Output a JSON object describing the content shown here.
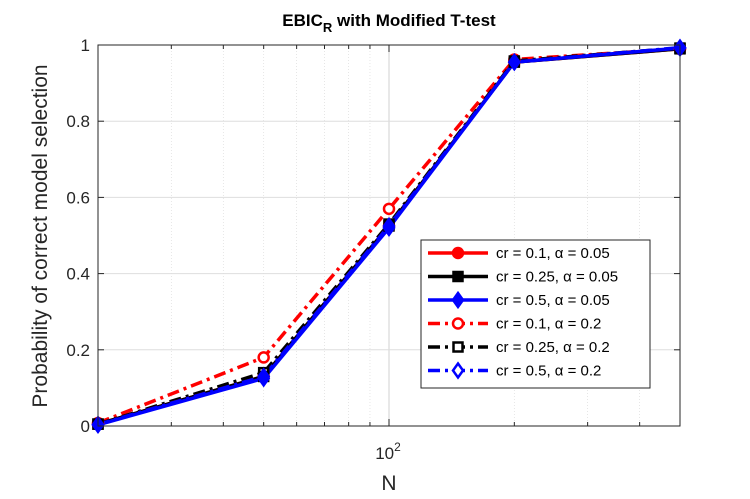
{
  "chart_data": {
    "type": "line",
    "title": "EBIC",
    "title_subscript": "R",
    "title_suffix": " with Modified T-test",
    "xlabel": "N",
    "ylabel": "Probability of correct model selection",
    "xscale": "log",
    "xlim": [
      20,
      500
    ],
    "ylim": [
      0,
      1
    ],
    "x_tick_label_base": "10",
    "x_tick_label_exponent": "2",
    "y_ticks": [
      "0",
      "0.2",
      "0.4",
      "0.6",
      "0.8",
      "1"
    ],
    "grid": true,
    "legend_position": "lower-right",
    "x": [
      20,
      50,
      100,
      200,
      500
    ],
    "series": [
      {
        "name": "cr = 0.1, α = 0.05",
        "color": "#ff0000",
        "marker": "circle",
        "filled": true,
        "dashed": false,
        "values": [
          0.005,
          0.13,
          0.525,
          0.955,
          0.99
        ]
      },
      {
        "name": "cr = 0.25, α = 0.05",
        "color": "#000000",
        "marker": "square",
        "filled": true,
        "dashed": false,
        "values": [
          0.005,
          0.13,
          0.525,
          0.955,
          0.99
        ]
      },
      {
        "name": "cr = 0.5, α = 0.05",
        "color": "#0000ff",
        "marker": "diamond",
        "filled": true,
        "dashed": false,
        "values": [
          0.003,
          0.125,
          0.52,
          0.955,
          0.992
        ]
      },
      {
        "name": "cr = 0.1, α = 0.2",
        "color": "#ff0000",
        "marker": "circle",
        "filled": false,
        "dashed": true,
        "values": [
          0.008,
          0.18,
          0.57,
          0.962,
          0.99
        ]
      },
      {
        "name": "cr = 0.25, α = 0.2",
        "color": "#000000",
        "marker": "square",
        "filled": false,
        "dashed": true,
        "values": [
          0.005,
          0.14,
          0.53,
          0.958,
          0.992
        ]
      },
      {
        "name": "cr = 0.5, α = 0.2",
        "color": "#0000ff",
        "marker": "diamond",
        "filled": false,
        "dashed": true,
        "values": [
          0.004,
          0.13,
          0.525,
          0.955,
          0.993
        ]
      }
    ]
  }
}
